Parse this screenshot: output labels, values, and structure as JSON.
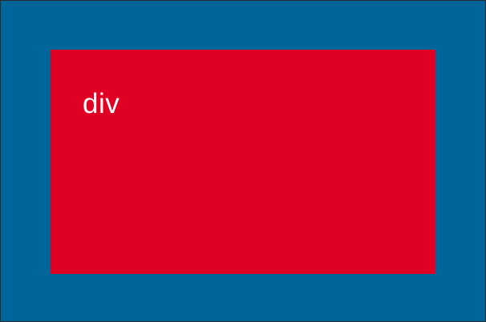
{
  "diagram": {
    "outer_color": "#006699",
    "inner_color": "#e00024",
    "inner_label": "div"
  }
}
